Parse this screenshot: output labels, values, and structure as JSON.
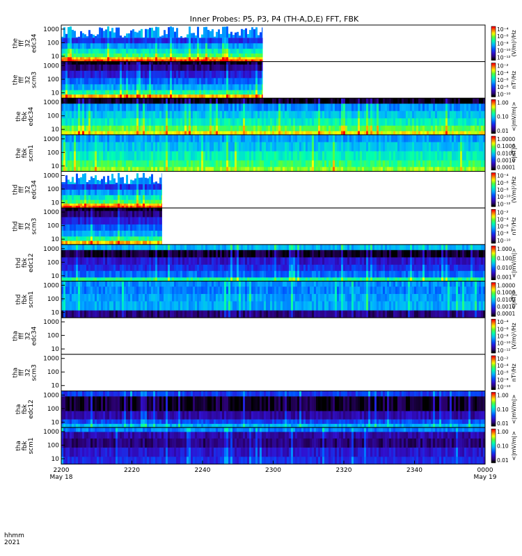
{
  "chart_data": {
    "type": "heatmap",
    "title": "Inner Probes: P5, P3, P4 (TH-A,D,E) FFT, FBK",
    "x_axis": {
      "label_top": "hhmm",
      "label_bottom": "2021",
      "range_minutes": [
        0,
        120
      ],
      "ticks": [
        {
          "minute": 0,
          "label": "2200",
          "date": "May 18"
        },
        {
          "minute": 20,
          "label": "2220",
          "date": ""
        },
        {
          "minute": 40,
          "label": "2240",
          "date": ""
        },
        {
          "minute": 60,
          "label": "2300",
          "date": ""
        },
        {
          "minute": 80,
          "label": "2320",
          "date": ""
        },
        {
          "minute": 100,
          "label": "2340",
          "date": ""
        },
        {
          "minute": 120,
          "label": "0000",
          "date": "May 19"
        }
      ]
    },
    "panels": [
      {
        "ylabel": [
          "the",
          "fff",
          "32",
          "edc34"
        ],
        "yticks": [
          "1000",
          "100",
          "10"
        ],
        "ylim": [
          4,
          2000
        ],
        "end_minute": 57,
        "style": "fff_e",
        "cbar_unit": "(V/m)²/Hz",
        "cbar_ticks": [
          "10⁻⁴",
          "10⁻⁶",
          "10⁻⁸",
          "10⁻¹⁰",
          "10⁻¹²"
        ]
      },
      {
        "ylabel": [
          "the",
          "fff",
          "32",
          "scm3"
        ],
        "yticks": [
          "1000",
          "100",
          "10"
        ],
        "ylim": [
          4,
          2000
        ],
        "end_minute": 57,
        "style": "fff_b",
        "cbar_unit": "nT²/Hz",
        "cbar_ticks": [
          "10⁻²",
          "10⁻⁴",
          "10⁻⁶",
          "10⁻⁸",
          "10⁻¹⁰"
        ]
      },
      {
        "ylabel": [
          "the",
          "fbk",
          "edc34"
        ],
        "yticks": [
          "1000",
          "100",
          "10"
        ],
        "ylim": [
          4,
          2000
        ],
        "end_minute": 120,
        "style": "fbk_e_the",
        "cbar_unit": "<|mV/m|>",
        "cbar_ticks": [
          "1.00",
          "0.10",
          "0.01"
        ]
      },
      {
        "ylabel": [
          "the",
          "fbk",
          "scm1"
        ],
        "yticks": [
          "1000",
          "100",
          "10"
        ],
        "ylim": [
          4,
          2000
        ],
        "end_minute": 120,
        "style": "fbk_b_the",
        "cbar_unit": "<|nT|>",
        "cbar_ticks": [
          "1.0000",
          "0.1000",
          "0.0100",
          "0.0010",
          "0.0001"
        ]
      },
      {
        "ylabel": [
          "thd",
          "fff",
          "32",
          "edc34"
        ],
        "yticks": [
          "1000",
          "100",
          "10"
        ],
        "ylim": [
          4,
          2000
        ],
        "end_minute": 28.5,
        "style": "fff_e",
        "cbar_unit": "(V/m)²/Hz",
        "cbar_ticks": [
          "10⁻⁴",
          "10⁻⁶",
          "10⁻⁸",
          "10⁻¹⁰",
          "10⁻¹²"
        ]
      },
      {
        "ylabel": [
          "thd",
          "fff",
          "32",
          "scm3"
        ],
        "yticks": [
          "1000",
          "100",
          "10"
        ],
        "ylim": [
          4,
          2000
        ],
        "end_minute": 28.5,
        "style": "fff_b",
        "cbar_unit": "nT²/Hz",
        "cbar_ticks": [
          "10⁻²",
          "10⁻⁴",
          "10⁻⁶",
          "10⁻⁸",
          "10⁻¹⁰"
        ]
      },
      {
        "ylabel": [
          "thd",
          "fbk",
          "edc12"
        ],
        "yticks": [
          "1000",
          "100",
          "10"
        ],
        "ylim": [
          4,
          2000
        ],
        "end_minute": 120,
        "style": "fbk_e_thd",
        "cbar_unit": "<|mV/m|>",
        "cbar_ticks": [
          "1.000",
          "0.100",
          "0.010",
          "0.001"
        ]
      },
      {
        "ylabel": [
          "thd",
          "fbk",
          "scm1"
        ],
        "yticks": [
          "1000",
          "100",
          "10"
        ],
        "ylim": [
          4,
          2000
        ],
        "end_minute": 120,
        "style": "fbk_b_thd",
        "cbar_unit": "<|nT|>",
        "cbar_ticks": [
          "1.0000",
          "0.1000",
          "0.0100",
          "0.0010",
          "0.0001"
        ]
      },
      {
        "ylabel": [
          "tha",
          "fff",
          "32",
          "edc34"
        ],
        "yticks": [
          "1000",
          "100",
          "10"
        ],
        "ylim": [
          4,
          2000
        ],
        "end_minute": 0,
        "style": "empty",
        "cbar_unit": "(V/m)²/Hz",
        "cbar_ticks": [
          "10⁻⁴",
          "10⁻⁶",
          "10⁻⁸",
          "10⁻¹⁰",
          "10⁻¹²"
        ]
      },
      {
        "ylabel": [
          "tha",
          "fff",
          "32",
          "scm3"
        ],
        "yticks": [
          "1000",
          "100",
          "10"
        ],
        "ylim": [
          4,
          2000
        ],
        "end_minute": 0,
        "style": "empty",
        "cbar_unit": "nT²/Hz",
        "cbar_ticks": [
          "10⁻²",
          "10⁻⁴",
          "10⁻⁶",
          "10⁻⁸",
          "10⁻¹⁰"
        ]
      },
      {
        "ylabel": [
          "tha",
          "fbk",
          "edc12"
        ],
        "yticks": [
          "1000",
          "100",
          "10"
        ],
        "ylim": [
          4,
          2000
        ],
        "end_minute": 120,
        "style": "fbk_e_tha",
        "cbar_unit": "<|mV/m|>",
        "cbar_ticks": [
          "1.00",
          "0.10",
          "0.01"
        ]
      },
      {
        "ylabel": [
          "tha",
          "fbk",
          "scm1"
        ],
        "yticks": [
          "1000",
          "100",
          "10"
        ],
        "ylim": [
          4,
          2000
        ],
        "end_minute": 120,
        "style": "fbk_b_tha",
        "cbar_unit": "<|mV/m|>",
        "cbar_ticks": [
          "1.00",
          "0.10",
          "0.01"
        ]
      }
    ]
  }
}
